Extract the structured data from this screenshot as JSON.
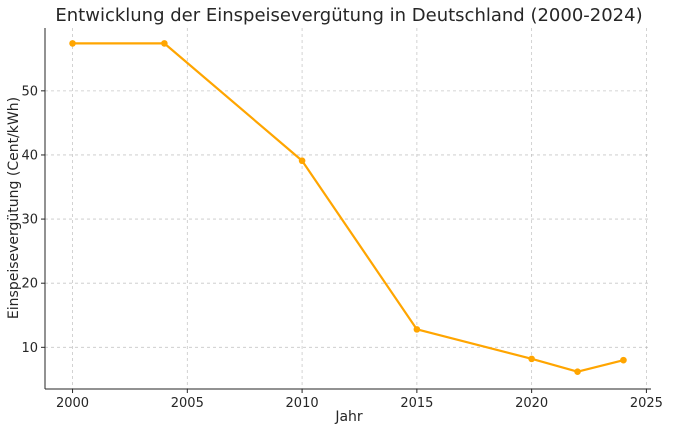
{
  "chart_data": {
    "type": "line",
    "title": "Entwicklung der Einspeisevergütung in Deutschland (2000-2024)",
    "xlabel": "Jahr",
    "ylabel": "Einspeisevergütung (Cent/kWh)",
    "xlim": [
      1998.8,
      2025.2
    ],
    "ylim": [
      3.5,
      59.8
    ],
    "xticks": [
      2000,
      2005,
      2010,
      2015,
      2020,
      2025
    ],
    "yticks": [
      10,
      20,
      30,
      40,
      50
    ],
    "grid": true,
    "series": [
      {
        "color": "#FFA500",
        "x": [
          2000,
          2004,
          2010,
          2015,
          2020,
          2022,
          2024
        ],
        "y": [
          57.4,
          57.4,
          39.1,
          12.8,
          8.2,
          6.2,
          8.0
        ]
      }
    ]
  }
}
